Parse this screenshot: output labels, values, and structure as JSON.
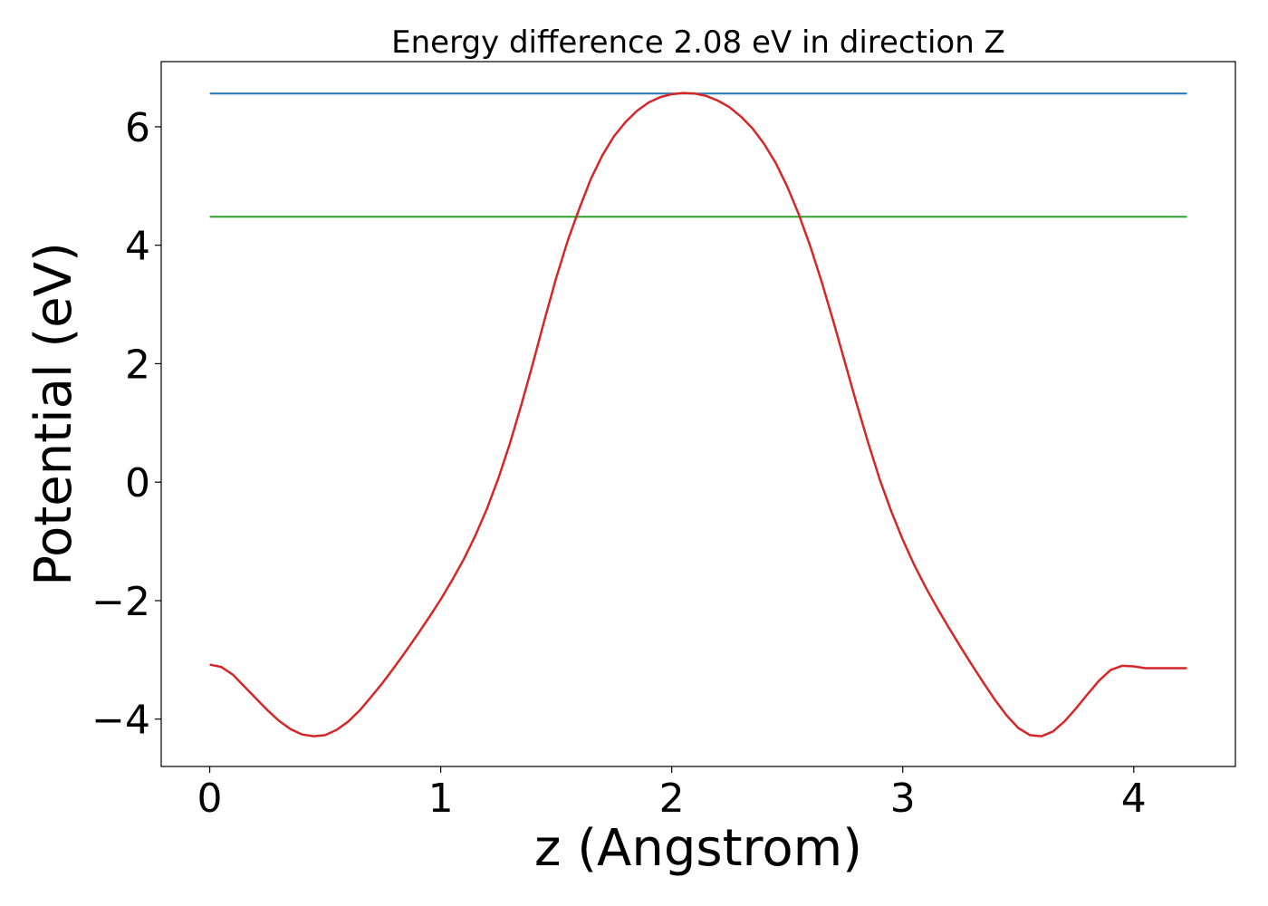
{
  "chart_data": {
    "type": "line",
    "title": "Energy difference 2.08 eV in direction Z",
    "xlabel": "z (Angstrom)",
    "ylabel": "Potential (eV)",
    "xlim": [
      -0.21,
      4.44
    ],
    "ylim": [
      -4.8,
      7.1
    ],
    "xticks": [
      0,
      1,
      2,
      3,
      4
    ],
    "xtick_labels": [
      "0",
      "1",
      "2",
      "3",
      "4"
    ],
    "yticks": [
      -4,
      -2,
      0,
      2,
      4,
      6
    ],
    "ytick_labels": [
      "−4",
      "−2",
      "0",
      "2",
      "4",
      "6"
    ],
    "grid": false,
    "series": [
      {
        "color": "#1f77b4",
        "x": [
          0,
          4.23
        ],
        "y": [
          6.56,
          6.56
        ]
      },
      {
        "color": "#2ca02c",
        "x": [
          0,
          4.23
        ],
        "y": [
          4.48,
          4.48
        ]
      },
      {
        "color": "#d62728",
        "x": [
          0,
          0.05,
          0.1,
          0.15,
          0.2,
          0.25,
          0.3,
          0.35,
          0.4,
          0.45,
          0.5,
          0.55,
          0.6,
          0.65,
          0.7,
          0.75,
          0.8,
          0.85,
          0.9,
          0.95,
          1.0,
          1.05,
          1.1,
          1.15,
          1.2,
          1.25,
          1.3,
          1.35,
          1.4,
          1.45,
          1.5,
          1.55,
          1.6,
          1.65,
          1.7,
          1.75,
          1.8,
          1.85,
          1.9,
          1.95,
          2.0,
          2.05,
          2.1,
          2.15,
          2.2,
          2.25,
          2.3,
          2.35,
          2.4,
          2.45,
          2.5,
          2.55,
          2.6,
          2.65,
          2.7,
          2.75,
          2.8,
          2.85,
          2.9,
          2.95,
          3.0,
          3.05,
          3.1,
          3.15,
          3.2,
          3.25,
          3.3,
          3.35,
          3.4,
          3.45,
          3.5,
          3.55,
          3.6,
          3.65,
          3.7,
          3.75,
          3.8,
          3.85,
          3.9,
          3.95,
          4.0,
          4.05,
          4.1,
          4.15,
          4.2,
          4.23
        ],
        "y": [
          -3.08,
          -3.12,
          -3.25,
          -3.45,
          -3.65,
          -3.85,
          -4.03,
          -4.17,
          -4.26,
          -4.29,
          -4.27,
          -4.18,
          -4.04,
          -3.85,
          -3.62,
          -3.38,
          -3.12,
          -2.85,
          -2.57,
          -2.28,
          -1.98,
          -1.65,
          -1.3,
          -0.9,
          -0.45,
          0.07,
          0.66,
          1.32,
          2.02,
          2.75,
          3.45,
          4.08,
          4.62,
          5.12,
          5.52,
          5.84,
          6.08,
          6.27,
          6.41,
          6.5,
          6.55,
          6.57,
          6.56,
          6.52,
          6.44,
          6.33,
          6.17,
          5.97,
          5.71,
          5.39,
          4.99,
          4.52,
          3.98,
          3.37,
          2.71,
          2.02,
          1.33,
          0.67,
          0.05,
          -0.49,
          -0.97,
          -1.4,
          -1.78,
          -2.13,
          -2.46,
          -2.78,
          -3.09,
          -3.39,
          -3.68,
          -3.94,
          -4.15,
          -4.27,
          -4.29,
          -4.21,
          -4.04,
          -3.82,
          -3.58,
          -3.35,
          -3.17,
          -3.1,
          -3.11,
          -3.14,
          -3.14,
          -3.14,
          -3.14,
          -3.14
        ]
      }
    ]
  }
}
